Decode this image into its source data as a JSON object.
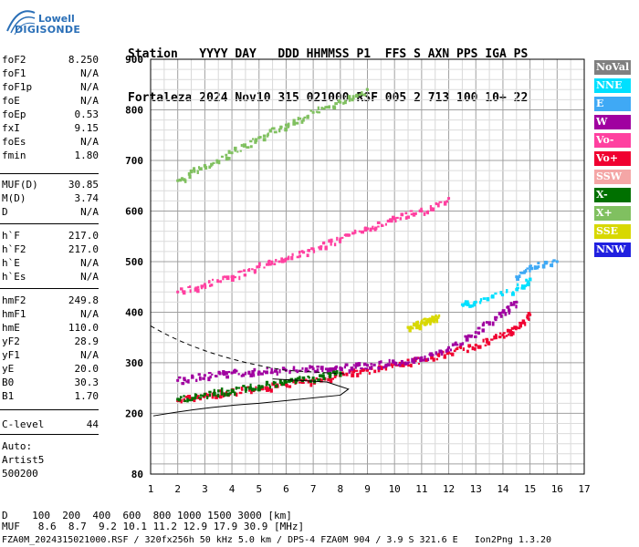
{
  "logo": {
    "line1": "Lowell",
    "line2": "DIGISONDE"
  },
  "header": {
    "row1": "Station   YYYY DAY   DDD HHMMSS P1  FFS S AXN PPS IGA PS",
    "row2": "Fortaleza 2024 Nov10 315 021000 RSF 005 2 713 100 10+ 22"
  },
  "params_group1": [
    {
      "k": "foF2",
      "v": "8.250"
    },
    {
      "k": "foF1",
      "v": "N/A"
    },
    {
      "k": "foF1p",
      "v": "N/A"
    },
    {
      "k": "foE",
      "v": "N/A"
    },
    {
      "k": "foEp",
      "v": "0.53"
    },
    {
      "k": "fxI",
      "v": "9.15"
    },
    {
      "k": "foEs",
      "v": "N/A"
    },
    {
      "k": "fmin",
      "v": "1.80"
    }
  ],
  "params_group2": [
    {
      "k": "MUF(D)",
      "v": "30.85"
    },
    {
      "k": "M(D)",
      "v": "3.74"
    },
    {
      "k": "D",
      "v": "N/A"
    }
  ],
  "params_group3": [
    {
      "k": "h`F",
      "v": "217.0"
    },
    {
      "k": "h`F2",
      "v": "217.0"
    },
    {
      "k": "h`E",
      "v": "N/A"
    },
    {
      "k": "h`Es",
      "v": "N/A"
    }
  ],
  "params_group4": [
    {
      "k": "hmF2",
      "v": "249.8"
    },
    {
      "k": "hmF1",
      "v": "N/A"
    },
    {
      "k": "hmE",
      "v": "110.0"
    },
    {
      "k": "yF2",
      "v": "28.9"
    },
    {
      "k": "yF1",
      "v": "N/A"
    },
    {
      "k": "yE",
      "v": "20.0"
    },
    {
      "k": "B0",
      "v": "30.3"
    },
    {
      "k": "B1",
      "v": "1.70"
    }
  ],
  "clevel": {
    "k": "C-level",
    "v": "44"
  },
  "auto": [
    "Auto:",
    "Artist5",
    "500200"
  ],
  "legend": [
    {
      "label": "NoVal",
      "color": "#808080"
    },
    {
      "label": "NNE",
      "color": "#00e0ff"
    },
    {
      "label": "E",
      "color": "#3fa9f5"
    },
    {
      "label": "W",
      "color": "#a000a0"
    },
    {
      "label": "Vo-",
      "color": "#ff40a0"
    },
    {
      "label": "Vo+",
      "color": "#f00030"
    },
    {
      "label": "SSW",
      "color": "#f4a6a6"
    },
    {
      "label": "X-",
      "color": "#007000"
    },
    {
      "label": "X+",
      "color": "#80c060"
    },
    {
      "label": "SSE",
      "color": "#d8d800"
    },
    {
      "label": "NNW",
      "color": "#2020e0"
    }
  ],
  "footer": {
    "line1": "D    100  200  400  600  800 1000 1500 3000 [km]",
    "line2": "MUF   8.6  8.7  9.2 10.1 11.2 12.9 17.9 30.9 [MHz]",
    "line3": "FZA0M_2024315021000.RSF / 320fx256h 50 kHz 5.0 km / DPS-4 FZA0M 904 / 3.9 S 321.6 E   Ion2Png 1.3.20"
  },
  "chart_data": {
    "type": "scatter",
    "title": "",
    "xlabel": "",
    "ylabel": "",
    "xlim": [
      1,
      17
    ],
    "ylim": [
      80,
      900
    ],
    "x_ticks": [
      1,
      2,
      3,
      4,
      5,
      6,
      7,
      8,
      9,
      10,
      11,
      12,
      13,
      14,
      15,
      16,
      17
    ],
    "y_ticks": [
      80,
      200,
      300,
      400,
      500,
      600,
      700,
      800,
      900
    ],
    "grid": true,
    "series": [
      {
        "name": "Vo+",
        "color": "#f00030",
        "x": [
          2.0,
          3.0,
          4.0,
          5.0,
          6.0,
          7.0,
          8.0,
          9.0,
          10.0,
          11.0,
          12.0,
          13.0,
          14.0,
          14.5,
          15.0
        ],
        "y": [
          225,
          235,
          243,
          250,
          258,
          266,
          276,
          285,
          297,
          305,
          320,
          335,
          355,
          370,
          395
        ]
      },
      {
        "name": "X-",
        "color": "#007000",
        "x": [
          2.0,
          3.0,
          4.0,
          5.0,
          6.0,
          7.0,
          8.0
        ],
        "y": [
          228,
          238,
          246,
          254,
          262,
          270,
          280
        ]
      },
      {
        "name": "Vo-",
        "color": "#ff40a0",
        "x": [
          2.0,
          3.0,
          4.0,
          5.0,
          6.0,
          7.0,
          8.0,
          9.0,
          10.0,
          11.0,
          12.0
        ],
        "y": [
          440,
          455,
          470,
          490,
          505,
          525,
          545,
          565,
          585,
          600,
          625
        ]
      },
      {
        "name": "W",
        "color": "#a000a0",
        "x": [
          2.0,
          3.0,
          4.0,
          5.0,
          6.0,
          7.0,
          8.0,
          9.0,
          10.0,
          11.0,
          12.0,
          13.0,
          14.0,
          14.5
        ],
        "y": [
          265,
          275,
          280,
          282,
          285,
          288,
          290,
          295,
          300,
          310,
          330,
          360,
          400,
          420
        ]
      },
      {
        "name": "X+",
        "color": "#80c060",
        "x": [
          2.0,
          3.0,
          4.0,
          5.0,
          6.0,
          7.0,
          8.0,
          9.0
        ],
        "y": [
          660,
          690,
          715,
          745,
          770,
          795,
          815,
          840
        ]
      },
      {
        "name": "SSE",
        "color": "#d8d800",
        "x": [
          10.5,
          11.0,
          11.3,
          11.6
        ],
        "y": [
          370,
          380,
          385,
          390
        ]
      },
      {
        "name": "NNE",
        "color": "#00e0ff",
        "x": [
          12.5,
          13.0,
          14.5,
          15.0
        ],
        "y": [
          415,
          420,
          445,
          465
        ]
      },
      {
        "name": "E",
        "color": "#3fa9f5",
        "x": [
          14.5,
          15.0,
          16.0
        ],
        "y": [
          470,
          490,
          500
        ]
      }
    ]
  }
}
